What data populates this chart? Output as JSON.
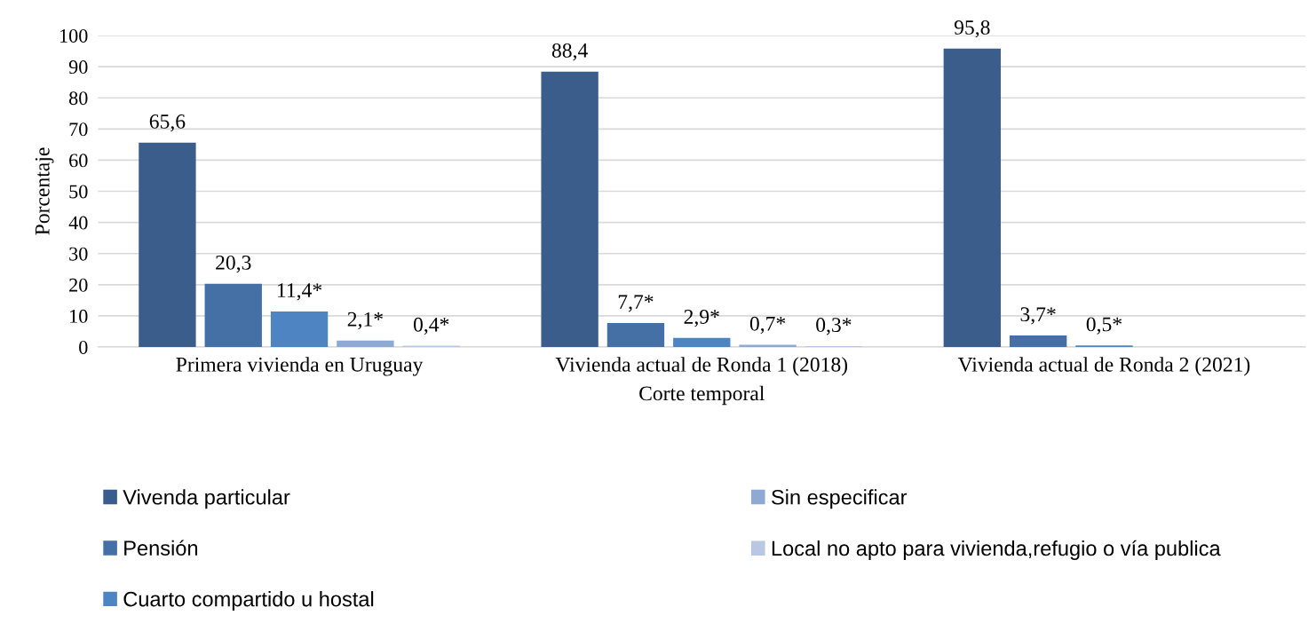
{
  "chart_data": {
    "type": "bar",
    "xlabel": "Corte temporal",
    "ylabel": "Porcentaje",
    "categories": [
      "Primera vivienda en Uruguay",
      "Vivienda actual de Ronda 1 (2018)",
      "Vivienda actual de Ronda 2 (2021)"
    ],
    "series": [
      {
        "name": "Vivenda particular",
        "color": "#3b5d8c",
        "values": [
          65.6,
          88.4,
          95.8
        ],
        "value_labels": [
          "65,6",
          "88,4",
          "95,8"
        ]
      },
      {
        "name": "Pensión",
        "color": "#4470a6",
        "values": [
          20.3,
          7.7,
          3.7
        ],
        "value_labels": [
          "20,3",
          "7,7*",
          "3,7*"
        ]
      },
      {
        "name": "Cuarto compartido u hostal",
        "color": "#4f84c2",
        "values": [
          11.4,
          2.9,
          0.5
        ],
        "value_labels": [
          "11,4*",
          "2,9*",
          "0,5*"
        ]
      },
      {
        "name": "Sin especificar",
        "color": "#8ea9d4",
        "values": [
          2.1,
          0.7,
          null
        ],
        "value_labels": [
          "2,1*",
          "0,7*",
          null
        ]
      },
      {
        "name": "Local no apto para vivienda,refugio o vía publica",
        "color": "#b8c7e4",
        "values": [
          0.4,
          0.3,
          null
        ],
        "value_labels": [
          "0,4*",
          "0,3*",
          null
        ]
      }
    ],
    "ylim": [
      0,
      100
    ],
    "yticks": [
      0,
      10,
      20,
      30,
      40,
      50,
      60,
      70,
      80,
      90,
      100
    ],
    "grid": "y",
    "legend": "bottom"
  }
}
